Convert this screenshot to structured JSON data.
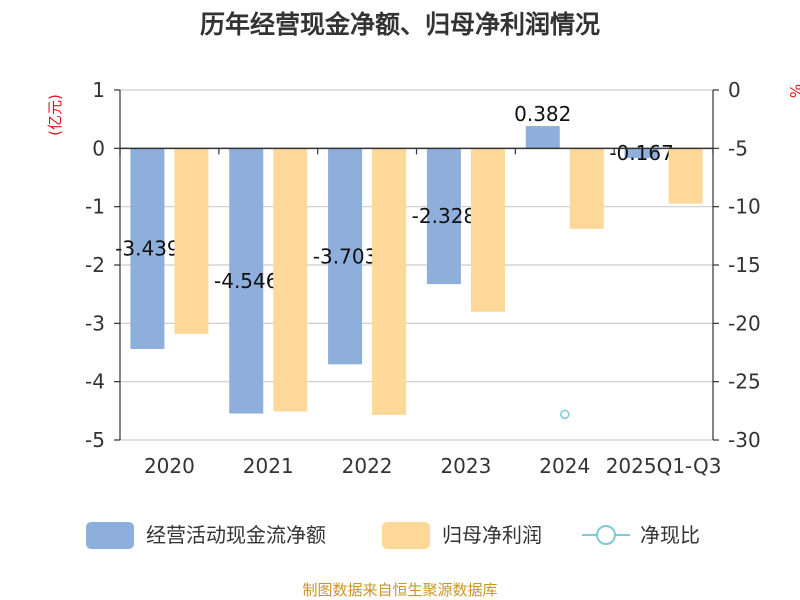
{
  "chart_data": {
    "type": "bar",
    "title": "历年经营现金净额、归母净利润情况",
    "categories": [
      "2020",
      "2021",
      "2022",
      "2023",
      "2024",
      "2025Q1-Q3"
    ],
    "series": [
      {
        "name": "经营活动现金流净额",
        "axis": "left",
        "color": "#8eaedb",
        "values": [
          -3.439,
          -4.546,
          -3.703,
          -2.328,
          0.382,
          -0.167
        ],
        "labels": [
          "-3.439",
          "-4.546",
          "-3.703",
          "-2.328",
          "0.382",
          "-0.167"
        ]
      },
      {
        "name": "归母净利润",
        "axis": "left",
        "color": "#fed899",
        "values": [
          -3.18,
          -4.51,
          -4.57,
          -2.8,
          -1.38,
          -0.95
        ]
      },
      {
        "name": "净现比",
        "axis": "right",
        "color": "#7ecbd8",
        "type": "scatter",
        "values": [
          null,
          null,
          null,
          null,
          -27.8,
          null
        ]
      }
    ],
    "y_left": {
      "label": "(亿元)",
      "ylim": [
        -5,
        1
      ],
      "ticks": [
        "1",
        "0",
        "-1",
        "-2",
        "-3",
        "-4",
        "-5"
      ]
    },
    "y_right": {
      "label": "%",
      "ylim": [
        -30,
        0
      ],
      "ticks": [
        "0",
        "-5",
        "-10",
        "-15",
        "-20",
        "-25",
        "-30"
      ]
    },
    "grid": true,
    "legend_position": "bottom"
  },
  "footer": "制图数据来自恒生聚源数据库"
}
